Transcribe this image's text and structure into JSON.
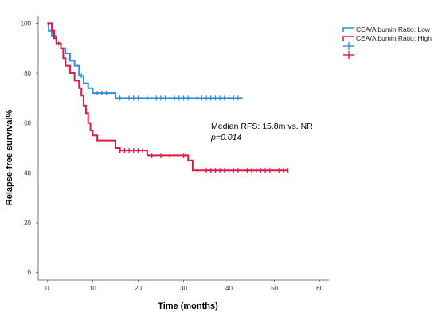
{
  "chart_data": {
    "type": "line",
    "subtype": "kaplan-meier-step",
    "title": "",
    "xlabel": "Time (months)",
    "ylabel": "Relapse-free survival%",
    "xlim": [
      -2,
      62
    ],
    "ylim": [
      -3,
      103
    ],
    "xticks": [
      "0",
      "10",
      "20",
      "30",
      "40",
      "50",
      "60"
    ],
    "yticks": [
      "0",
      "20",
      "40",
      "60",
      "80",
      "100"
    ],
    "grid": false,
    "legend_position": "top-right",
    "series": [
      {
        "name": "CEA/Albumin Ratio: Low",
        "color": "#2f8fdc",
        "steps": [
          [
            0,
            100
          ],
          [
            0.3,
            97
          ],
          [
            1,
            95
          ],
          [
            2,
            92
          ],
          [
            3,
            90
          ],
          [
            4,
            88
          ],
          [
            5,
            85
          ],
          [
            6,
            83
          ],
          [
            7,
            79
          ],
          [
            8,
            76
          ],
          [
            9,
            74
          ],
          [
            10,
            72
          ],
          [
            15,
            70
          ],
          [
            43,
            70
          ]
        ],
        "censors": [
          2.5,
          7.5,
          11,
          12,
          13,
          16,
          18,
          19,
          20,
          22,
          24,
          25,
          26,
          28,
          29,
          30,
          31,
          33,
          34,
          35,
          36,
          37,
          38,
          39,
          40,
          41,
          42
        ]
      },
      {
        "name": "CEA/Albumin Ratio: High",
        "color": "#e8163d",
        "steps": [
          [
            0,
            100
          ],
          [
            1,
            97
          ],
          [
            1.5,
            94
          ],
          [
            2,
            92
          ],
          [
            3,
            90
          ],
          [
            3.5,
            86
          ],
          [
            4,
            83
          ],
          [
            5,
            80
          ],
          [
            6,
            77
          ],
          [
            7,
            74
          ],
          [
            7.5,
            71
          ],
          [
            8,
            67
          ],
          [
            8.5,
            64
          ],
          [
            9,
            60
          ],
          [
            9.5,
            57
          ],
          [
            10,
            55
          ],
          [
            11,
            53
          ],
          [
            15,
            50
          ],
          [
            16,
            49
          ],
          [
            22,
            47
          ],
          [
            31,
            45
          ],
          [
            32,
            41
          ],
          [
            53,
            41
          ]
        ],
        "censors": [
          16,
          17,
          18,
          19,
          20,
          21,
          23,
          25,
          27,
          30,
          33,
          35,
          36,
          37,
          38,
          39,
          40,
          41,
          42,
          44,
          45,
          46,
          47,
          48,
          49,
          51,
          52,
          53
        ]
      }
    ],
    "annotations": [
      "Median RFS: 15.8m vs. NR",
      "p=0.014"
    ]
  }
}
